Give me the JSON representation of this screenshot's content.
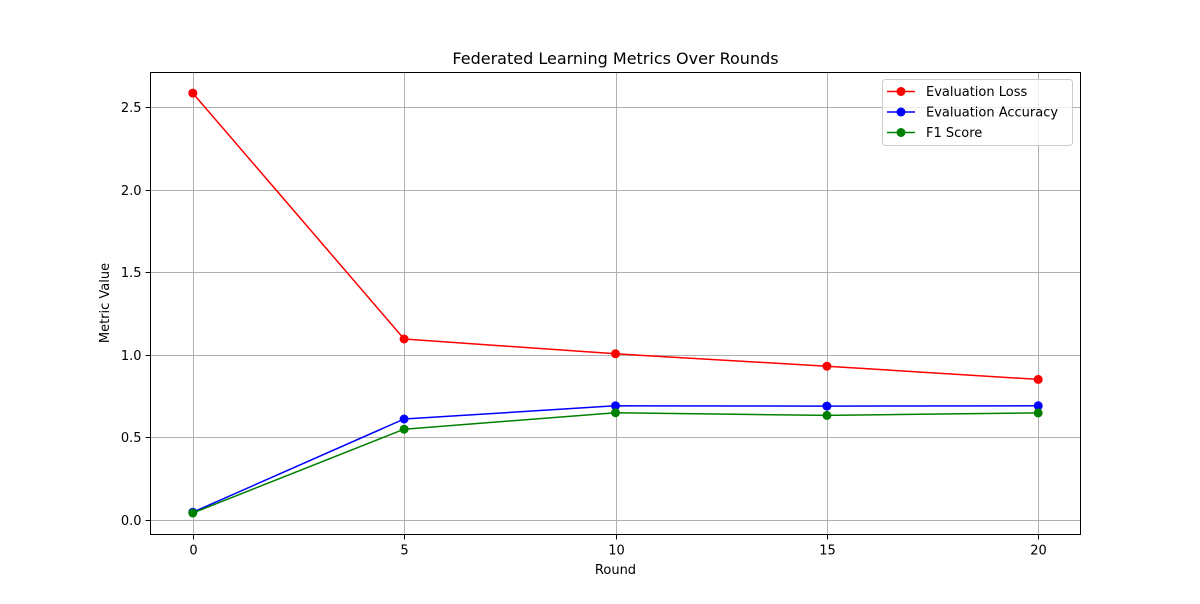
{
  "chart_data": {
    "type": "line",
    "title": "Federated Learning Metrics Over Rounds",
    "xlabel": "Round",
    "ylabel": "Metric Value",
    "x": [
      0,
      5,
      10,
      15,
      20
    ],
    "x_ticks": [
      "0",
      "5",
      "10",
      "15",
      "20"
    ],
    "y_ticks": [
      "0.0",
      "0.5",
      "1.0",
      "1.5",
      "2.0",
      "2.5"
    ],
    "xlim": [
      -1,
      21
    ],
    "ylim": [
      -0.09,
      2.71
    ],
    "grid": true,
    "legend_position": "top-right",
    "series": [
      {
        "name": "Evaluation Loss",
        "color": "#ff0000",
        "marker": "circle",
        "values": [
          2.585,
          1.095,
          1.005,
          0.93,
          0.85
        ]
      },
      {
        "name": "Evaluation Accuracy",
        "color": "#0000ff",
        "marker": "circle",
        "values": [
          0.045,
          0.61,
          0.69,
          0.688,
          0.69
        ]
      },
      {
        "name": "F1 Score",
        "color": "#008000",
        "marker": "circle",
        "values": [
          0.04,
          0.548,
          0.648,
          0.632,
          0.647
        ]
      }
    ]
  }
}
